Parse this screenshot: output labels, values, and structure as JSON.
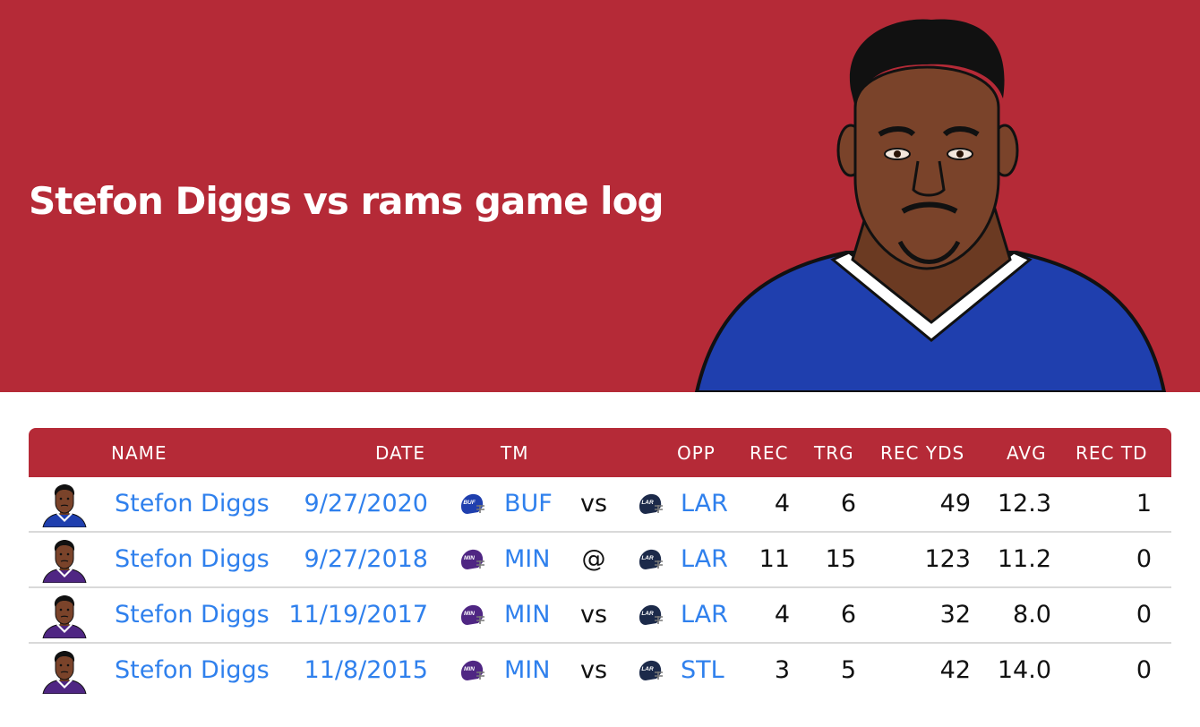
{
  "header": {
    "title": "Stefon Diggs vs rams game log"
  },
  "table": {
    "columns": {
      "name": "NAME",
      "date": "DATE",
      "tm": "TM",
      "opp": "OPP",
      "rec": "REC",
      "trg": "TRG",
      "rec_yds": "REC YDS",
      "avg": "AVG",
      "rec_td": "REC TD"
    },
    "rows": [
      {
        "name": "Stefon Diggs",
        "date": "9/27/2020",
        "tm": "BUF",
        "tm_logo": "BUF",
        "at": "vs",
        "opp": "LAR",
        "opp_logo": "LAR",
        "rec": "4",
        "trg": "6",
        "rec_yds": "49",
        "avg": "12.3",
        "rec_td": "1",
        "jersey_color": "#1f3fae"
      },
      {
        "name": "Stefon Diggs",
        "date": "9/27/2018",
        "tm": "MIN",
        "tm_logo": "MIN",
        "at": "@",
        "opp": "LAR",
        "opp_logo": "LAR",
        "rec": "11",
        "trg": "15",
        "rec_yds": "123",
        "avg": "11.2",
        "rec_td": "0",
        "jersey_color": "#4f2683"
      },
      {
        "name": "Stefon Diggs",
        "date": "11/19/2017",
        "tm": "MIN",
        "tm_logo": "MIN",
        "at": "vs",
        "opp": "LAR",
        "opp_logo": "LAR",
        "rec": "4",
        "trg": "6",
        "rec_yds": "32",
        "avg": "8.0",
        "rec_td": "0",
        "jersey_color": "#4f2683"
      },
      {
        "name": "Stefon Diggs",
        "date": "11/8/2015",
        "tm": "MIN",
        "tm_logo": "MIN",
        "at": "vs",
        "opp": "STL",
        "opp_logo": "LAR",
        "rec": "3",
        "trg": "5",
        "rec_yds": "42",
        "avg": "14.0",
        "rec_td": "0",
        "jersey_color": "#4f2683"
      }
    ]
  },
  "colors": {
    "brand_red": "#b52a37",
    "link_blue": "#2f80ed",
    "bills_blue": "#1f3fae",
    "vikings_purple": "#4f2683",
    "rams_navy": "#1c2a4a"
  }
}
